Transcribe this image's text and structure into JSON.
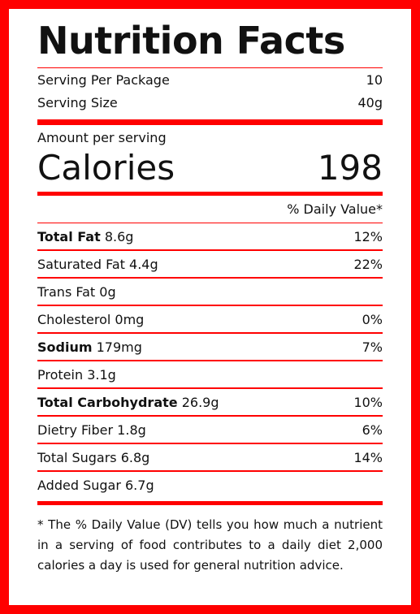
{
  "title": "Nutrition Facts",
  "serving": {
    "per_package_label": "Serving Per Package",
    "per_package_value": "10",
    "size_label": "Serving Size",
    "size_value": "40g"
  },
  "calories": {
    "amount_label": "Amount per serving",
    "label": "Calories",
    "value": "198"
  },
  "daily_value_header": "% Daily Value*",
  "nutrients": [
    {
      "name": "Total Fat",
      "amount": "8.6g",
      "dv": "12%",
      "bold": true
    },
    {
      "name": "Saturated Fat",
      "amount": "4.4g",
      "dv": "22%",
      "bold": false
    },
    {
      "name": "Trans Fat",
      "amount": "0g",
      "dv": "",
      "bold": false
    },
    {
      "name": "Cholesterol",
      "amount": "0mg",
      "dv": "0%",
      "bold": false
    },
    {
      "name": "Sodium",
      "amount": "179mg",
      "dv": "7%",
      "bold": true
    },
    {
      "name": "Protein",
      "amount": "3.1g",
      "dv": "",
      "bold": false
    },
    {
      "name": "Total Carbohydrate",
      "amount": "26.9g",
      "dv": "10%",
      "bold": true
    },
    {
      "name": "Dietry Fiber",
      "amount": "1.8g",
      "dv": "6%",
      "bold": false
    },
    {
      "name": "Total Sugars",
      "amount": "6.8g",
      "dv": "14%",
      "bold": false
    },
    {
      "name": "Added Sugar",
      "amount": "6.7g",
      "dv": "",
      "bold": false
    }
  ],
  "footnote": "* The % Daily Value (DV) tells you how much a nutrient in a serving of food contributes to a daily diet 2,000 calories a day is used for general nutrition advice.",
  "colors": {
    "accent": "#ff0000",
    "text": "#111111"
  }
}
